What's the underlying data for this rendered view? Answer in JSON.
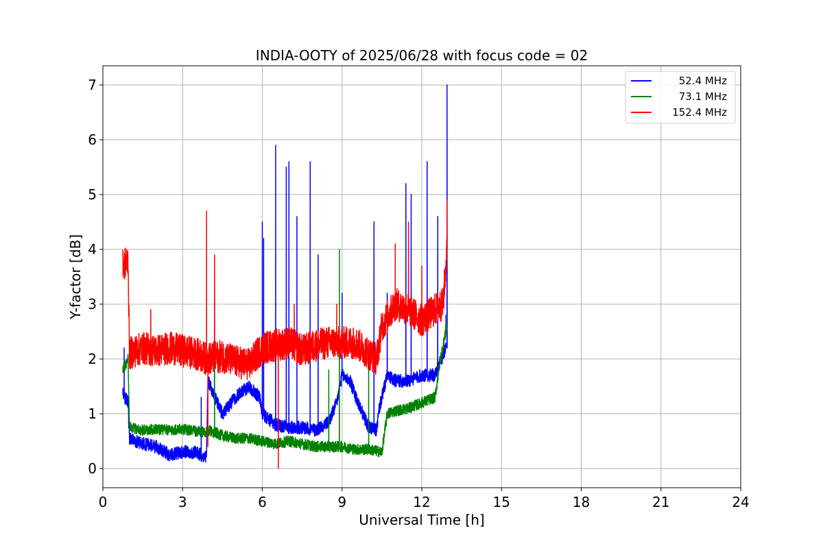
{
  "chart_data": {
    "type": "line",
    "title": "INDIA-OOTY of 2025/06/28 with focus code = 02",
    "xlabel": "Universal Time [h]",
    "ylabel": "Y-factor [dB]",
    "xlim": [
      0,
      24
    ],
    "ylim": [
      -0.35,
      7.35
    ],
    "xticks": [
      0,
      3,
      6,
      9,
      12,
      15,
      18,
      21,
      24
    ],
    "yticks": [
      0,
      1,
      2,
      3,
      4,
      5,
      6,
      7
    ],
    "grid": true,
    "legend_position": "top-right",
    "series": [
      {
        "name": "52.4 MHz",
        "color": "#0000ff",
        "noise": 0.12,
        "points": [
          [
            0.75,
            1.35
          ],
          [
            0.95,
            1.2
          ],
          [
            1.0,
            0.55
          ],
          [
            1.5,
            0.45
          ],
          [
            2.0,
            0.4
          ],
          [
            2.5,
            0.25
          ],
          [
            3.0,
            0.3
          ],
          [
            3.5,
            0.3
          ],
          [
            3.9,
            0.2
          ],
          [
            3.95,
            1.6
          ],
          [
            4.5,
            1.0
          ],
          [
            5.0,
            1.3
          ],
          [
            5.5,
            1.5
          ],
          [
            5.9,
            1.3
          ],
          [
            6.0,
            1.0
          ],
          [
            6.5,
            0.8
          ],
          [
            7.0,
            0.75
          ],
          [
            7.5,
            0.75
          ],
          [
            8.0,
            0.7
          ],
          [
            8.5,
            0.85
          ],
          [
            8.8,
            1.2
          ],
          [
            9.0,
            1.7
          ],
          [
            9.3,
            1.6
          ],
          [
            9.6,
            1.2
          ],
          [
            10.0,
            0.75
          ],
          [
            10.3,
            0.7
          ],
          [
            10.4,
            1.1
          ],
          [
            10.7,
            1.7
          ],
          [
            11.0,
            1.6
          ],
          [
            11.5,
            1.6
          ],
          [
            12.0,
            1.7
          ],
          [
            12.5,
            1.7
          ],
          [
            12.9,
            2.2
          ]
        ],
        "spikes": [
          [
            0.8,
            2.2
          ],
          [
            3.7,
            1.3
          ],
          [
            4.2,
            3.2
          ],
          [
            6.0,
            4.5
          ],
          [
            6.05,
            4.2
          ],
          [
            6.5,
            5.9
          ],
          [
            6.9,
            5.5
          ],
          [
            7.0,
            5.6
          ],
          [
            7.3,
            4.6
          ],
          [
            7.8,
            5.6
          ],
          [
            8.1,
            3.9
          ],
          [
            9.0,
            3.2
          ],
          [
            10.2,
            4.5
          ],
          [
            10.7,
            3.2
          ],
          [
            11.4,
            5.2
          ],
          [
            11.6,
            5.0
          ],
          [
            12.2,
            5.6
          ],
          [
            12.6,
            4.6
          ],
          [
            12.95,
            7.0
          ]
        ]
      },
      {
        "name": "73.1 MHz",
        "color": "#008000",
        "noise": 0.1,
        "points": [
          [
            0.75,
            1.8
          ],
          [
            0.95,
            2.0
          ],
          [
            1.0,
            0.75
          ],
          [
            1.5,
            0.7
          ],
          [
            2.0,
            0.72
          ],
          [
            2.5,
            0.7
          ],
          [
            3.0,
            0.72
          ],
          [
            3.5,
            0.68
          ],
          [
            3.9,
            0.65
          ],
          [
            4.0,
            0.7
          ],
          [
            4.5,
            0.6
          ],
          [
            5.0,
            0.55
          ],
          [
            5.5,
            0.55
          ],
          [
            6.0,
            0.5
          ],
          [
            6.5,
            0.45
          ],
          [
            7.0,
            0.5
          ],
          [
            7.5,
            0.45
          ],
          [
            8.0,
            0.4
          ],
          [
            8.5,
            0.4
          ],
          [
            9.0,
            0.4
          ],
          [
            9.5,
            0.35
          ],
          [
            10.0,
            0.35
          ],
          [
            10.5,
            0.3
          ],
          [
            10.7,
            1.0
          ],
          [
            11.0,
            1.05
          ],
          [
            11.5,
            1.1
          ],
          [
            12.0,
            1.2
          ],
          [
            12.5,
            1.3
          ],
          [
            12.7,
            2.0
          ],
          [
            12.95,
            2.6
          ]
        ],
        "spikes": [
          [
            4.2,
            3.3
          ],
          [
            8.5,
            1.8
          ],
          [
            8.9,
            4.0
          ],
          [
            10.0,
            2.2
          ],
          [
            12.9,
            2.8
          ]
        ]
      },
      {
        "name": "152.4 MHz",
        "color": "#ff0000",
        "noise": 0.3,
        "points": [
          [
            0.75,
            3.7
          ],
          [
            0.95,
            3.8
          ],
          [
            1.0,
            2.1
          ],
          [
            1.5,
            2.2
          ],
          [
            2.0,
            2.15
          ],
          [
            2.5,
            2.2
          ],
          [
            3.0,
            2.15
          ],
          [
            3.5,
            2.1
          ],
          [
            3.9,
            2.0
          ],
          [
            4.5,
            2.05
          ],
          [
            5.0,
            1.95
          ],
          [
            5.5,
            1.9
          ],
          [
            6.0,
            2.2
          ],
          [
            6.5,
            2.25
          ],
          [
            7.0,
            2.3
          ],
          [
            7.5,
            2.15
          ],
          [
            8.0,
            2.25
          ],
          [
            8.5,
            2.3
          ],
          [
            9.0,
            2.3
          ],
          [
            9.5,
            2.3
          ],
          [
            10.0,
            2.1
          ],
          [
            10.3,
            2.0
          ],
          [
            10.5,
            2.6
          ],
          [
            11.0,
            3.0
          ],
          [
            11.5,
            2.9
          ],
          [
            12.0,
            2.7
          ],
          [
            12.5,
            2.9
          ],
          [
            12.8,
            3.0
          ],
          [
            12.95,
            4.0
          ]
        ],
        "spikes": [
          [
            1.8,
            2.9
          ],
          [
            3.9,
            4.7
          ],
          [
            3.95,
            0.4
          ],
          [
            4.2,
            3.9
          ],
          [
            6.6,
            0.0
          ],
          [
            7.2,
            3.0
          ],
          [
            8.8,
            3.0
          ],
          [
            11.0,
            4.1
          ],
          [
            11.5,
            4.5
          ],
          [
            12.0,
            3.7
          ],
          [
            12.95,
            4.9
          ]
        ]
      }
    ]
  }
}
